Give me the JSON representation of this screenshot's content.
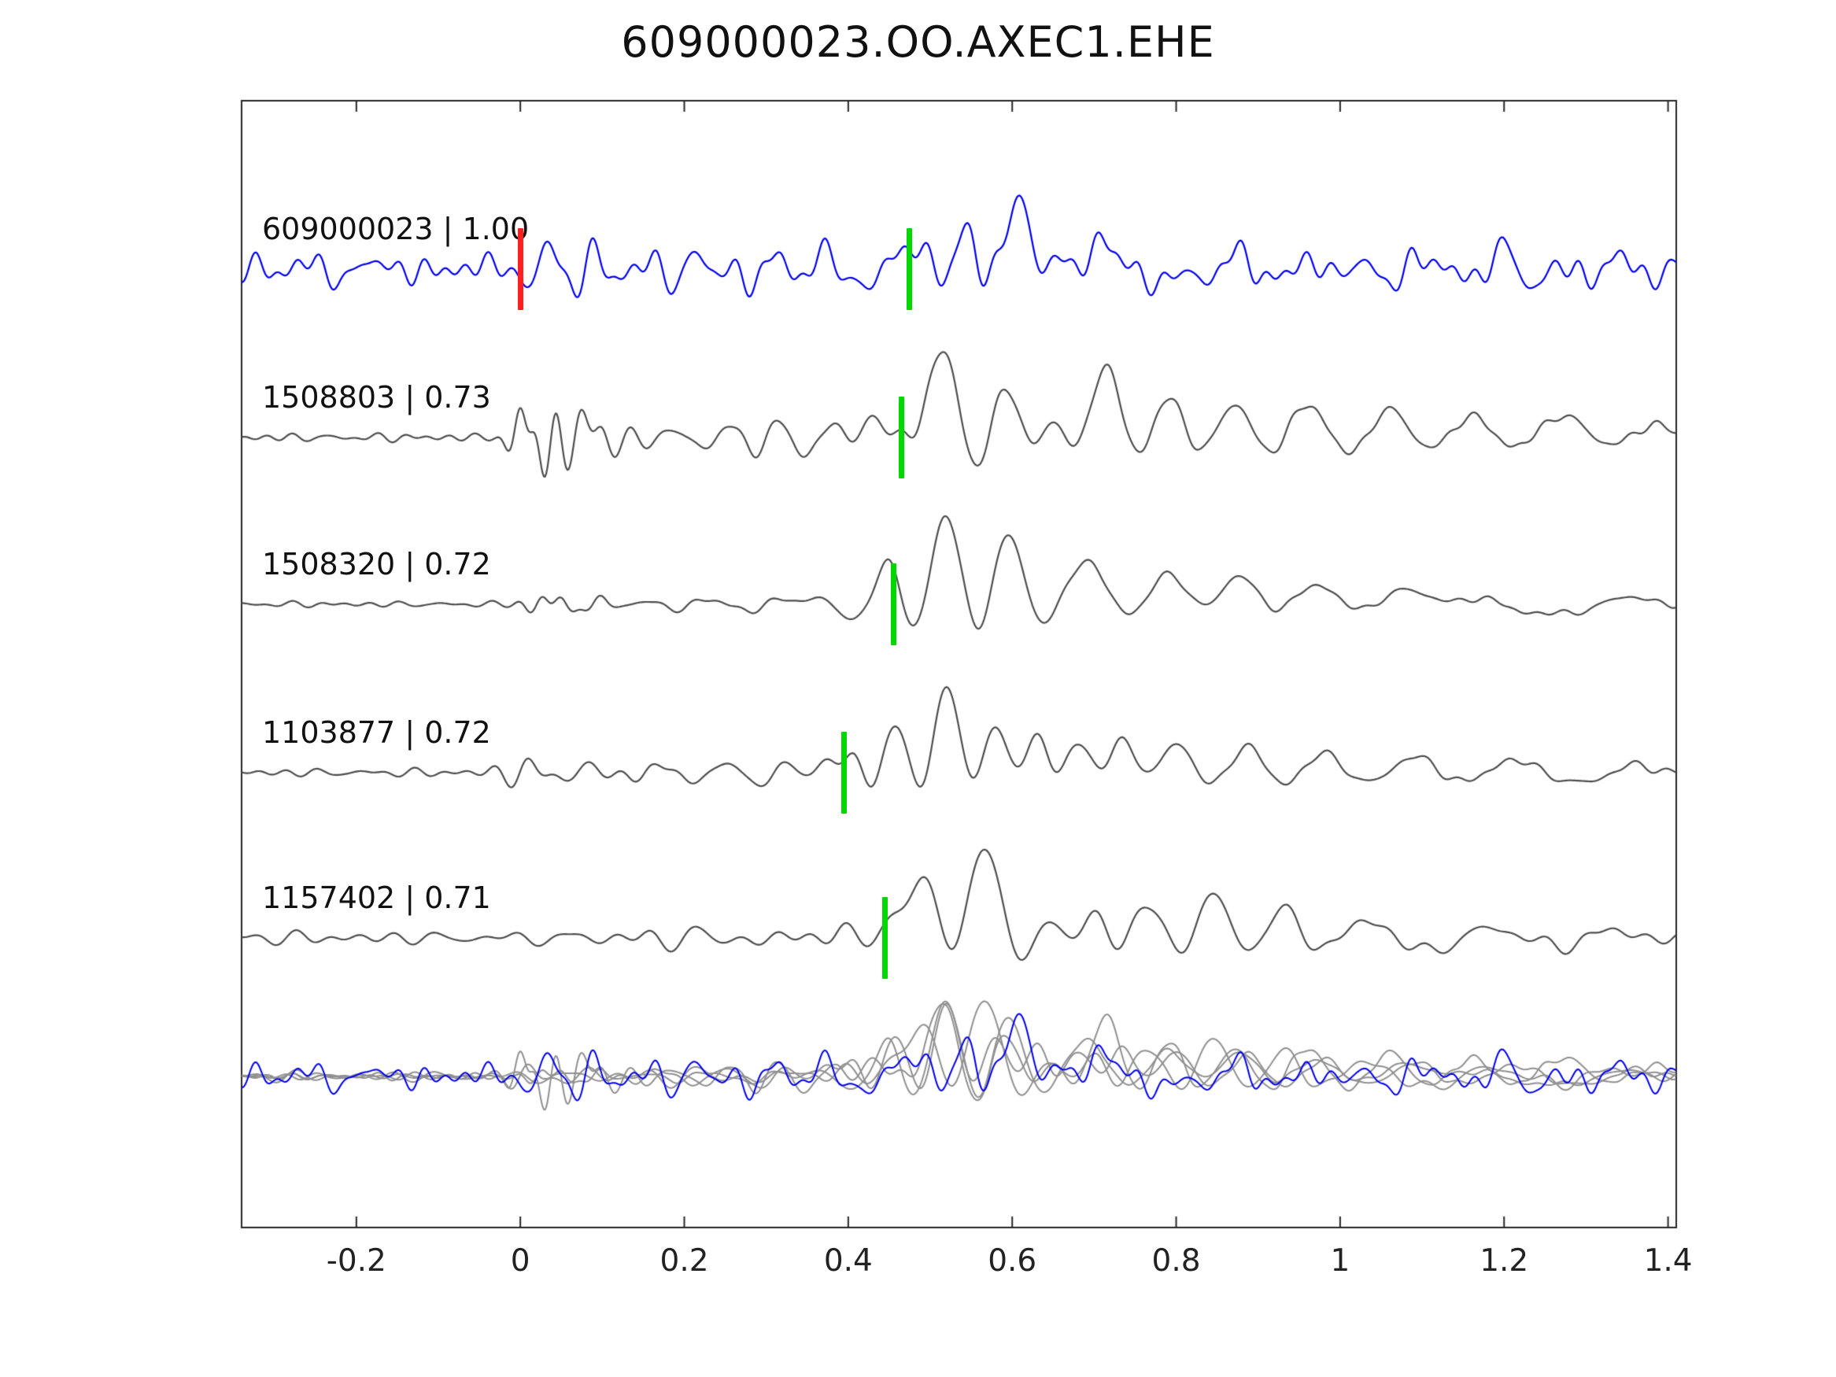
{
  "title": "609000023.OO.AXEC1.EHE",
  "chart_data": {
    "type": "line",
    "title": "609000023.OO.AXEC1.EHE",
    "xlabel": "",
    "ylabel": "",
    "grid": false,
    "legend": "none",
    "xlim": [
      -0.34,
      1.41
    ],
    "x_ticks": [
      -0.2,
      0,
      0.2,
      0.4,
      0.6,
      0.8,
      1,
      1.2,
      1.4
    ],
    "x_tick_labels": [
      "-0.2",
      "0",
      "0.2",
      "0.4",
      "0.6",
      "0.8",
      "1",
      "1.2",
      "1.4"
    ],
    "colors": {
      "query": "#0000ee",
      "template": "#4d4d4d",
      "overlay_template": "#909090",
      "pick_green": "#00d800",
      "pick_red": "#ff1f1f",
      "axis": "#262626",
      "background": "#ffffff"
    },
    "layout": {
      "plot_left": 307,
      "plot_top": 128,
      "plot_right": 2130,
      "plot_bottom": 1560,
      "row_baselines": [
        342,
        556,
        768,
        982,
        1192
      ],
      "overlay_baseline": 1368,
      "overlay_scale": 0.85,
      "label_x": 333,
      "tick_len": 14,
      "trace_line_width": 2.2,
      "pick_width": 7,
      "pick_half_height": 52
    },
    "traces": [
      {
        "id": "609000023",
        "similarity": "1.00",
        "label": "609000023 | 1.00",
        "kind": "query",
        "picks": [
          {
            "t": 0.0,
            "color": "red"
          },
          {
            "t": 0.475,
            "color": "green"
          }
        ],
        "synthesis": {
          "noises": [
            {
              "amp": 15,
              "freq": 26,
              "t0": -0.6,
              "t1": 1.6,
              "seed": 3
            },
            {
              "amp": 9,
              "freq": 11,
              "t0": -0.6,
              "t1": 1.6,
              "seed": 7
            }
          ],
          "bumps": [
            [
              -0.2,
              0.05,
              10,
              16,
              0
            ],
            [
              0.03,
              0.03,
              -28,
              18,
              -1.57
            ],
            [
              0.08,
              0.035,
              26,
              20,
              0.5
            ],
            [
              0.2,
              0.05,
              14,
              18,
              0
            ],
            [
              0.3,
              0.04,
              18,
              15,
              0
            ],
            [
              0.37,
              0.04,
              26,
              13,
              1.57
            ],
            [
              0.44,
              0.035,
              28,
              13,
              0
            ],
            [
              0.49,
              0.03,
              -55,
              12,
              -1.57
            ],
            [
              0.545,
              0.035,
              60,
              11,
              1.57
            ],
            [
              0.578,
              0.02,
              -30,
              14,
              -1.57
            ],
            [
              0.607,
              0.038,
              105,
              10,
              1.57
            ],
            [
              0.655,
              0.03,
              -55,
              11,
              -1.57
            ],
            [
              0.7,
              0.04,
              40,
              11,
              1.57
            ],
            [
              0.76,
              0.05,
              -35,
              10,
              0
            ],
            [
              0.85,
              0.05,
              30,
              12,
              0
            ],
            [
              0.95,
              0.05,
              20,
              13,
              0
            ],
            [
              1.08,
              0.05,
              22,
              12,
              0
            ],
            [
              1.22,
              0.04,
              -25,
              13,
              0
            ],
            [
              1.32,
              0.05,
              22,
              12,
              0
            ]
          ]
        }
      },
      {
        "id": "1508803",
        "similarity": "0.73",
        "label": "1508803 | 0.73",
        "kind": "template",
        "picks": [
          {
            "t": 0.465,
            "color": "green"
          }
        ],
        "synthesis": {
          "noises": [
            {
              "amp": 5,
              "freq": 24,
              "t0": -0.6,
              "t1": 1.6,
              "seed": 21
            }
          ],
          "bumps": [
            [
              0.0,
              0.018,
              40,
              30,
              1.57
            ],
            [
              0.03,
              0.02,
              -55,
              28,
              1.57
            ],
            [
              0.065,
              0.025,
              50,
              24,
              0
            ],
            [
              0.105,
              0.025,
              -30,
              22,
              0
            ],
            [
              0.17,
              0.04,
              12,
              18,
              0
            ],
            [
              0.24,
              0.04,
              16,
              16,
              0
            ],
            [
              0.3,
              0.035,
              20,
              16,
              0
            ],
            [
              0.365,
              0.04,
              24,
              13,
              0
            ],
            [
              0.43,
              0.03,
              -35,
              11,
              -1.57
            ],
            [
              0.465,
              0.025,
              -50,
              10,
              -1.57
            ],
            [
              0.515,
              0.05,
              115,
              8,
              1.57
            ],
            [
              0.59,
              0.04,
              -75,
              8.5,
              -1.57
            ],
            [
              0.65,
              0.035,
              45,
              9,
              1.57
            ],
            [
              0.715,
              0.05,
              95,
              7.5,
              1.57
            ],
            [
              0.79,
              0.05,
              -65,
              7.5,
              -1.57
            ],
            [
              0.87,
              0.055,
              50,
              7,
              1.57
            ],
            [
              0.96,
              0.06,
              -45,
              6.5,
              -1.57
            ],
            [
              1.06,
              0.06,
              38,
              6.5,
              1.57
            ],
            [
              1.16,
              0.06,
              -30,
              6,
              -1.57
            ],
            [
              1.27,
              0.07,
              28,
              5.5,
              1.57
            ],
            [
              1.38,
              0.05,
              -18,
              6,
              -1.57
            ]
          ]
        }
      },
      {
        "id": "1508320",
        "similarity": "0.72",
        "label": "1508320 | 0.72",
        "kind": "template",
        "picks": [
          {
            "t": 0.455,
            "color": "green"
          }
        ],
        "synthesis": {
          "noises": [
            {
              "amp": 3.5,
              "freq": 22,
              "t0": -0.6,
              "t1": 1.6,
              "seed": 31
            }
          ],
          "bumps": [
            [
              0.02,
              0.02,
              12,
              28,
              0
            ],
            [
              0.055,
              0.02,
              -14,
              26,
              0
            ],
            [
              0.09,
              0.02,
              10,
              24,
              0
            ],
            [
              0.21,
              0.05,
              8,
              14,
              0
            ],
            [
              0.3,
              0.04,
              12,
              13,
              0
            ],
            [
              0.38,
              0.035,
              -16,
              11,
              0
            ],
            [
              0.45,
              0.035,
              -62,
              9,
              -1.57
            ],
            [
              0.52,
              0.045,
              118,
              8,
              1.57
            ],
            [
              0.595,
              0.045,
              -100,
              7.5,
              -1.57
            ],
            [
              0.69,
              0.065,
              55,
              5.5,
              1.57
            ],
            [
              0.79,
              0.055,
              -48,
              6,
              -1.57
            ],
            [
              0.875,
              0.055,
              42,
              6,
              1.57
            ],
            [
              0.97,
              0.06,
              -28,
              5.5,
              -1.57
            ],
            [
              1.08,
              0.07,
              20,
              5,
              1.57
            ],
            [
              1.2,
              0.07,
              -16,
              5.5,
              0
            ],
            [
              1.32,
              0.06,
              14,
              6,
              0
            ]
          ]
        }
      },
      {
        "id": "1103877",
        "similarity": "0.72",
        "label": "1103877 | 0.72",
        "kind": "template",
        "picks": [
          {
            "t": 0.395,
            "color": "green"
          }
        ],
        "synthesis": {
          "noises": [
            {
              "amp": 5,
              "freq": 21,
              "t0": -0.6,
              "t1": 1.6,
              "seed": 41
            }
          ],
          "bumps": [
            [
              0.0,
              0.03,
              16,
              22,
              0
            ],
            [
              0.07,
              0.035,
              14,
              18,
              0
            ],
            [
              0.15,
              0.04,
              12,
              16,
              0
            ],
            [
              0.23,
              0.04,
              16,
              15,
              0
            ],
            [
              0.31,
              0.035,
              18,
              14,
              0
            ],
            [
              0.37,
              0.03,
              22,
              13,
              1.57
            ],
            [
              0.405,
              0.025,
              38,
              12,
              1.57
            ],
            [
              0.46,
              0.035,
              -75,
              10,
              -1.57
            ],
            [
              0.52,
              0.042,
              112,
              8.5,
              1.57
            ],
            [
              0.578,
              0.033,
              -80,
              9,
              -1.57
            ],
            [
              0.628,
              0.033,
              62,
              9.5,
              1.57
            ],
            [
              0.68,
              0.038,
              -52,
              9,
              -1.57
            ],
            [
              0.735,
              0.042,
              56,
              8,
              1.57
            ],
            [
              0.8,
              0.05,
              -46,
              7.5,
              -1.57
            ],
            [
              0.885,
              0.055,
              36,
              7,
              1.57
            ],
            [
              0.98,
              0.06,
              -26,
              6.5,
              -1.57
            ],
            [
              1.09,
              0.07,
              20,
              6,
              1.57
            ],
            [
              1.21,
              0.07,
              -16,
              6,
              -1.57
            ],
            [
              1.33,
              0.06,
              13,
              6,
              0
            ]
          ]
        }
      },
      {
        "id": "1157402",
        "similarity": "0.71",
        "label": "1157402 | 0.71",
        "kind": "template",
        "picks": [
          {
            "t": 0.445,
            "color": "green"
          }
        ],
        "synthesis": {
          "noises": [
            {
              "amp": 8,
              "freq": 17,
              "t0": -0.6,
              "t1": 1.6,
              "seed": 51
            }
          ],
          "bumps": [
            [
              0.05,
              0.05,
              10,
              16,
              0
            ],
            [
              0.2,
              0.05,
              10,
              14,
              0
            ],
            [
              0.31,
              0.04,
              12,
              13,
              0
            ],
            [
              0.4,
              0.03,
              -20,
              12,
              -1.57
            ],
            [
              0.455,
              0.03,
              -58,
              10,
              -1.57
            ],
            [
              0.495,
              0.038,
              108,
              9,
              1.57
            ],
            [
              0.565,
              0.05,
              -118,
              7,
              -1.57
            ],
            [
              0.645,
              0.035,
              42,
              10,
              1.57
            ],
            [
              0.7,
              0.035,
              44,
              10,
              1.57
            ],
            [
              0.765,
              0.045,
              -48,
              8,
              -1.57
            ],
            [
              0.845,
              0.05,
              55,
              7,
              1.57
            ],
            [
              0.93,
              0.05,
              -38,
              7,
              -1.57
            ],
            [
              1.03,
              0.06,
              22,
              6.5,
              1.57
            ],
            [
              1.15,
              0.07,
              16,
              6,
              0
            ],
            [
              1.3,
              0.06,
              14,
              6.5,
              0
            ]
          ]
        }
      }
    ],
    "overlay": {
      "description": "all template traces overlaid in light gray with query trace in blue",
      "order": [
        1,
        2,
        3,
        4,
        0
      ]
    }
  }
}
